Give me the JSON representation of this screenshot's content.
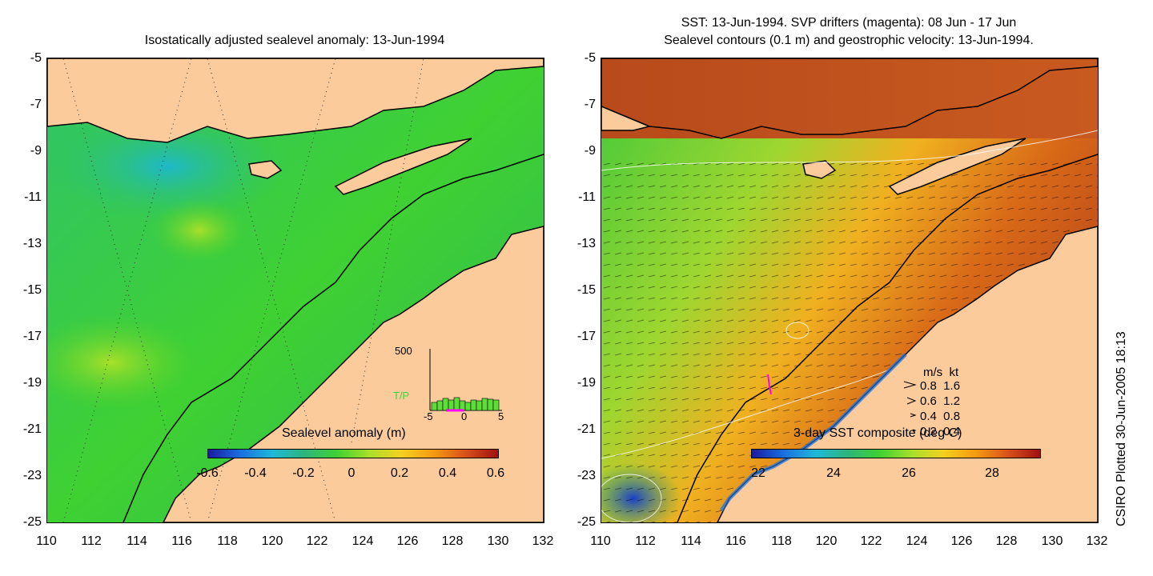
{
  "left_panel": {
    "title": "Isostatically adjusted sealevel anomaly: 13-Jun-1994",
    "colorbar": {
      "title": "Sealevel anomaly (m)",
      "labels": [
        "-0.6",
        "-0.4",
        "-0.2",
        "0",
        "0.2",
        "0.4",
        "0.6"
      ],
      "range": [
        -0.6,
        0.6
      ]
    },
    "inset": {
      "y_label": "500",
      "series_label": "T/P",
      "x_labels": [
        "-5",
        "0",
        "5"
      ]
    }
  },
  "right_panel": {
    "title_line1": "SST: 13-Jun-1994. SVP drifters (magenta): 08 Jun - 17 Jun",
    "title_line2": "Sealevel contours (0.1 m) and geostrophic velocity: 13-Jun-1994.",
    "colorbar": {
      "title": "3-day SST composite (deg C)",
      "labels": [
        "22",
        "24",
        "26",
        "28"
      ],
      "range": [
        21.7,
        29.5
      ]
    },
    "velocity_legend": {
      "header": "m/s  kt",
      "rows": [
        "0.8  1.6",
        "0.6  1.2",
        "0.4  0.8",
        "0.2  0.4"
      ]
    }
  },
  "axes": {
    "y_ticks": [
      "-5",
      "-7",
      "-9",
      "-11",
      "-13",
      "-15",
      "-17",
      "-19",
      "-21",
      "-23",
      "-25"
    ],
    "x_ticks": [
      "110",
      "112",
      "114",
      "116",
      "118",
      "120",
      "122",
      "124",
      "126",
      "128",
      "130",
      "132"
    ],
    "lon_range": [
      110,
      132
    ],
    "lat_range": [
      -25,
      -5
    ]
  },
  "footer": "CSIRO Plotted 30-Jun-2005 18:13",
  "colors": {
    "land": "#fccb9c",
    "sea_low": "#2aaa80",
    "sea_mid": "#3fd430",
    "sst_warm": "#c44a18",
    "sst_cool": "#28a060"
  }
}
